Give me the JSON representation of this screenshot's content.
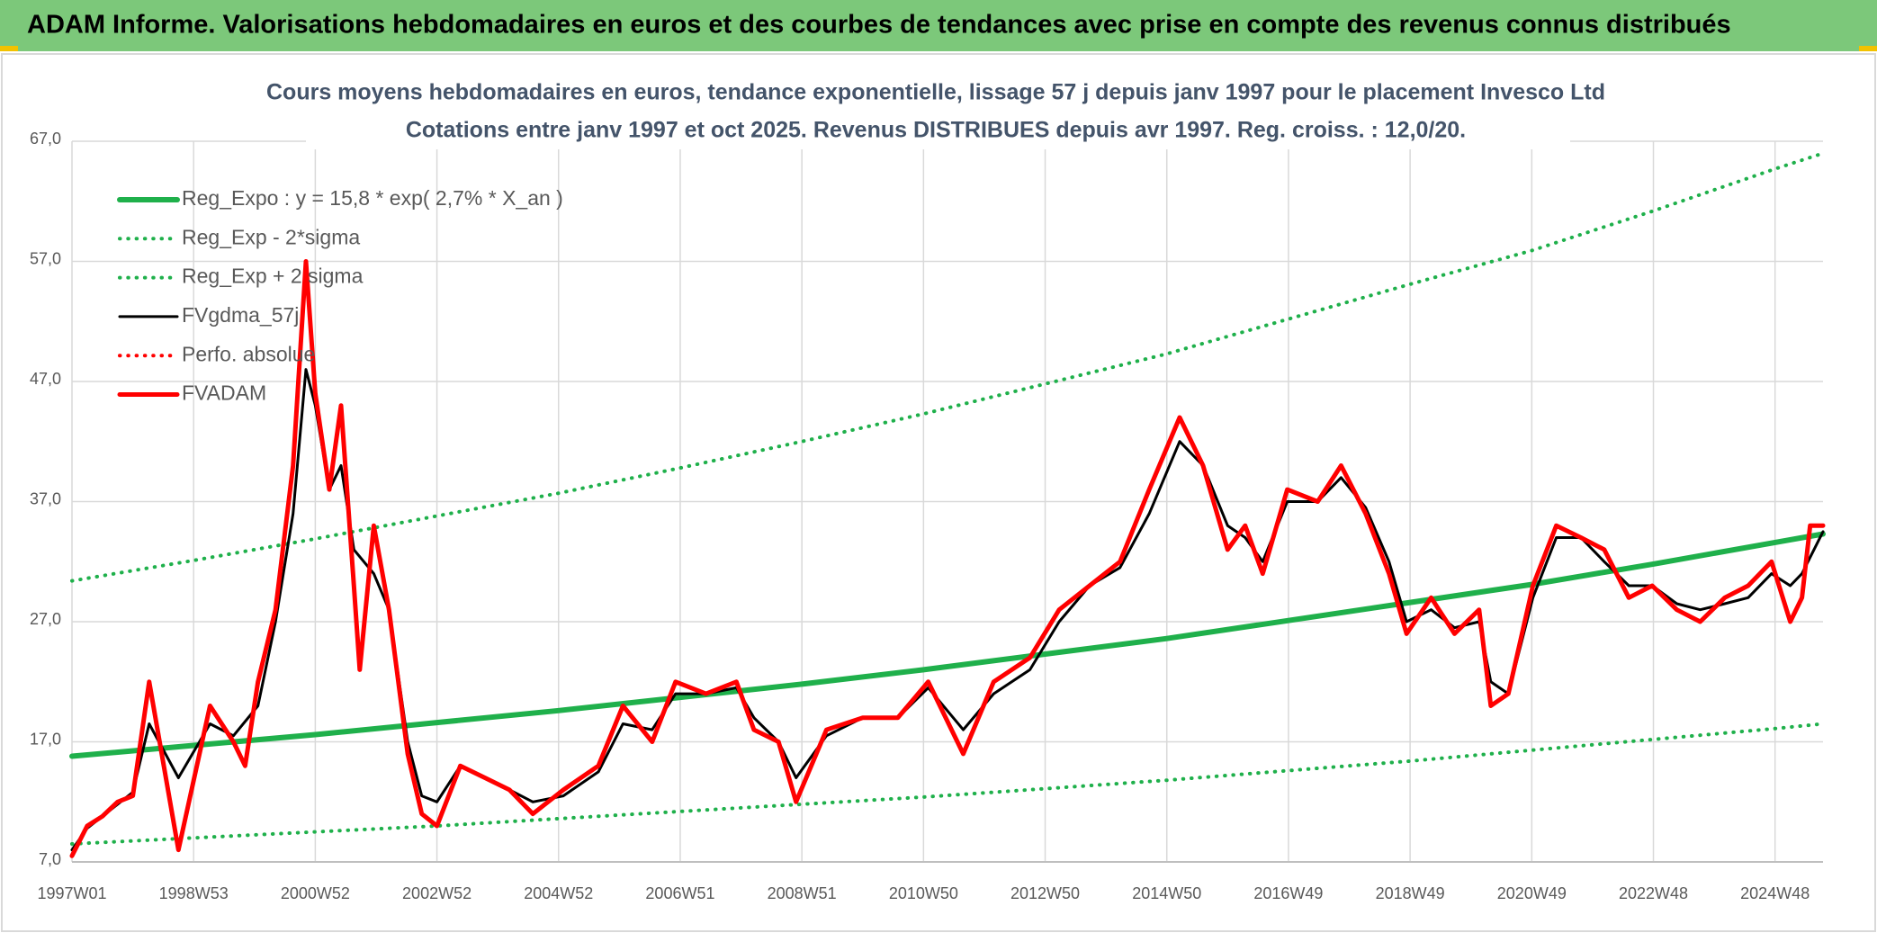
{
  "header": {
    "title": "ADAM Informe. Valorisations hebdomadaires en euros et des courbes de tendances avec prise en compte des revenus connus distribués"
  },
  "chart_data": {
    "type": "line",
    "title": "Cours moyens hebdomadaires en euros, tendance exponentielle, lissage 57 j depuis janv 1997 pour le placement Invesco Ltd",
    "subtitle": "Cotations entre janv 1997 et oct 2025. Revenus DISTRIBUES depuis avr 1997. Reg. croiss. : 12,0/20.",
    "xlim": [
      0,
      1497
    ],
    "xticks": [
      {
        "value": 0,
        "label": "1997W01"
      },
      {
        "value": 104,
        "label": "1998W53"
      },
      {
        "value": 208,
        "label": "2000W52"
      },
      {
        "value": 312,
        "label": "2002W52"
      },
      {
        "value": 416,
        "label": "2004W52"
      },
      {
        "value": 520,
        "label": "2006W51"
      },
      {
        "value": 624,
        "label": "2008W51"
      },
      {
        "value": 728,
        "label": "2010W50"
      },
      {
        "value": 832,
        "label": "2012W50"
      },
      {
        "value": 936,
        "label": "2014W50"
      },
      {
        "value": 1040,
        "label": "2016W49"
      },
      {
        "value": 1144,
        "label": "2018W49"
      },
      {
        "value": 1248,
        "label": "2020W49"
      },
      {
        "value": 1352,
        "label": "2022W48"
      },
      {
        "value": 1456,
        "label": "2024W48"
      }
    ],
    "ylim": [
      7,
      67
    ],
    "yticks": [
      {
        "value": 7,
        "label": "7,0"
      },
      {
        "value": 17,
        "label": "17,0"
      },
      {
        "value": 27,
        "label": "27,0"
      },
      {
        "value": 37,
        "label": "37,0"
      },
      {
        "value": 47,
        "label": "47,0"
      },
      {
        "value": 57,
        "label": "57,0"
      },
      {
        "value": 67,
        "label": "67,0"
      }
    ],
    "grid": true,
    "legend": "upper left",
    "series": [
      {
        "name": "Reg_Expo : y = 15,8 * exp( 2,7% *  X_an )",
        "color": "#1fb04b",
        "style": "solid",
        "width": 6,
        "x": [
          0,
          104,
          208,
          312,
          416,
          520,
          624,
          728,
          832,
          936,
          1040,
          1144,
          1248,
          1352,
          1456,
          1497
        ],
        "values": [
          15.8,
          16.7,
          17.6,
          18.6,
          19.6,
          20.7,
          21.8,
          23.0,
          24.3,
          25.6,
          27.1,
          28.6,
          30.1,
          31.8,
          33.6,
          34.3
        ]
      },
      {
        "name": "Reg_Exp - 2*sigma",
        "color": "#1fb04b",
        "style": "dotted",
        "width": 4,
        "x": [
          0,
          104,
          208,
          312,
          416,
          520,
          624,
          728,
          832,
          936,
          1040,
          1144,
          1248,
          1352,
          1456,
          1497
        ],
        "values": [
          8.5,
          9.0,
          9.5,
          10.0,
          10.6,
          11.2,
          11.8,
          12.4,
          13.1,
          13.8,
          14.6,
          15.4,
          16.3,
          17.2,
          18.1,
          18.5
        ]
      },
      {
        "name": "Reg_Exp + 2 sigma",
        "color": "#1fb04b",
        "style": "dotted",
        "width": 4,
        "x": [
          0,
          104,
          208,
          312,
          416,
          520,
          624,
          728,
          832,
          936,
          1040,
          1144,
          1248,
          1352,
          1456,
          1497
        ],
        "values": [
          30.4,
          32.1,
          33.9,
          35.8,
          37.7,
          39.8,
          42.0,
          44.3,
          46.8,
          49.3,
          52.2,
          55.1,
          57.9,
          61.2,
          64.7,
          66.0
        ]
      },
      {
        "name": "FVgdma_57j",
        "color": "#000000",
        "style": "solid",
        "width": 3,
        "x": [
          0,
          13,
          26,
          39,
          52,
          66,
          91,
          118,
          138,
          159,
          174,
          189,
          200,
          208,
          220,
          230,
          241,
          258,
          271,
          287,
          299,
          312,
          332,
          353,
          374,
          394,
          420,
          450,
          471,
          496,
          516,
          542,
          568,
          583,
          604,
          619,
          645,
          676,
          706,
          732,
          762,
          788,
          819,
          844,
          870,
          896,
          921,
          947,
          967,
          988,
          1003,
          1018,
          1039,
          1065,
          1085,
          1106,
          1126,
          1141,
          1162,
          1182,
          1203,
          1213,
          1228,
          1249,
          1269,
          1290,
          1310,
          1331,
          1351,
          1372,
          1392,
          1413,
          1433,
          1453,
          1469,
          1479,
          1497
        ],
        "values": [
          8,
          9.8,
          10.8,
          11.8,
          12.8,
          18.5,
          14,
          18.5,
          17.5,
          20,
          27,
          36,
          48,
          45,
          38,
          40,
          33,
          31,
          28,
          17,
          12.5,
          12,
          15,
          14,
          13,
          12,
          12.5,
          14.5,
          18.5,
          18,
          21,
          21,
          21.5,
          19,
          17,
          14,
          17.5,
          19,
          19,
          21.5,
          18,
          21,
          23,
          27,
          30,
          31.5,
          36,
          42,
          40,
          35,
          34,
          32,
          37,
          37,
          39,
          36.5,
          32,
          27,
          28,
          26.5,
          27,
          22,
          21,
          29,
          34,
          34,
          32,
          30,
          30,
          28.5,
          28,
          28.5,
          29,
          31,
          30,
          31,
          34.5
        ]
      },
      {
        "name": "Perfo. absolue",
        "color": "#ff0000",
        "style": "dotted",
        "width": 4,
        "x": [],
        "values": []
      },
      {
        "name": "FVADAM",
        "color": "#ff0000",
        "style": "solid",
        "width": 5,
        "x": [
          0,
          13,
          26,
          39,
          52,
          66,
          91,
          118,
          138,
          148,
          159,
          174,
          189,
          200,
          208,
          220,
          230,
          241,
          246,
          258,
          271,
          287,
          299,
          312,
          332,
          353,
          374,
          394,
          420,
          450,
          471,
          496,
          516,
          542,
          568,
          583,
          604,
          619,
          645,
          676,
          706,
          732,
          762,
          788,
          819,
          844,
          870,
          896,
          921,
          947,
          967,
          988,
          1003,
          1018,
          1039,
          1065,
          1085,
          1106,
          1126,
          1141,
          1162,
          1182,
          1203,
          1213,
          1228,
          1249,
          1269,
          1290,
          1310,
          1331,
          1351,
          1372,
          1392,
          1413,
          1433,
          1453,
          1469,
          1479,
          1486,
          1497
        ],
        "values": [
          7.5,
          10,
          10.8,
          12,
          12.5,
          22,
          8,
          20,
          17,
          15,
          22,
          28,
          40,
          57,
          46,
          38,
          45,
          30,
          23,
          35,
          28,
          16,
          11,
          10,
          15,
          14,
          13,
          11,
          13,
          15,
          20,
          17,
          22,
          21,
          22,
          18,
          17,
          12,
          18,
          19,
          19,
          22,
          16,
          22,
          24,
          28,
          30,
          32,
          38,
          44,
          40,
          33,
          35,
          31,
          38,
          37,
          40,
          36,
          31,
          26,
          29,
          26,
          28,
          20,
          21,
          30,
          35,
          34,
          33,
          29,
          30,
          28,
          27,
          29,
          30,
          32,
          27,
          29,
          35,
          35
        ]
      }
    ]
  }
}
